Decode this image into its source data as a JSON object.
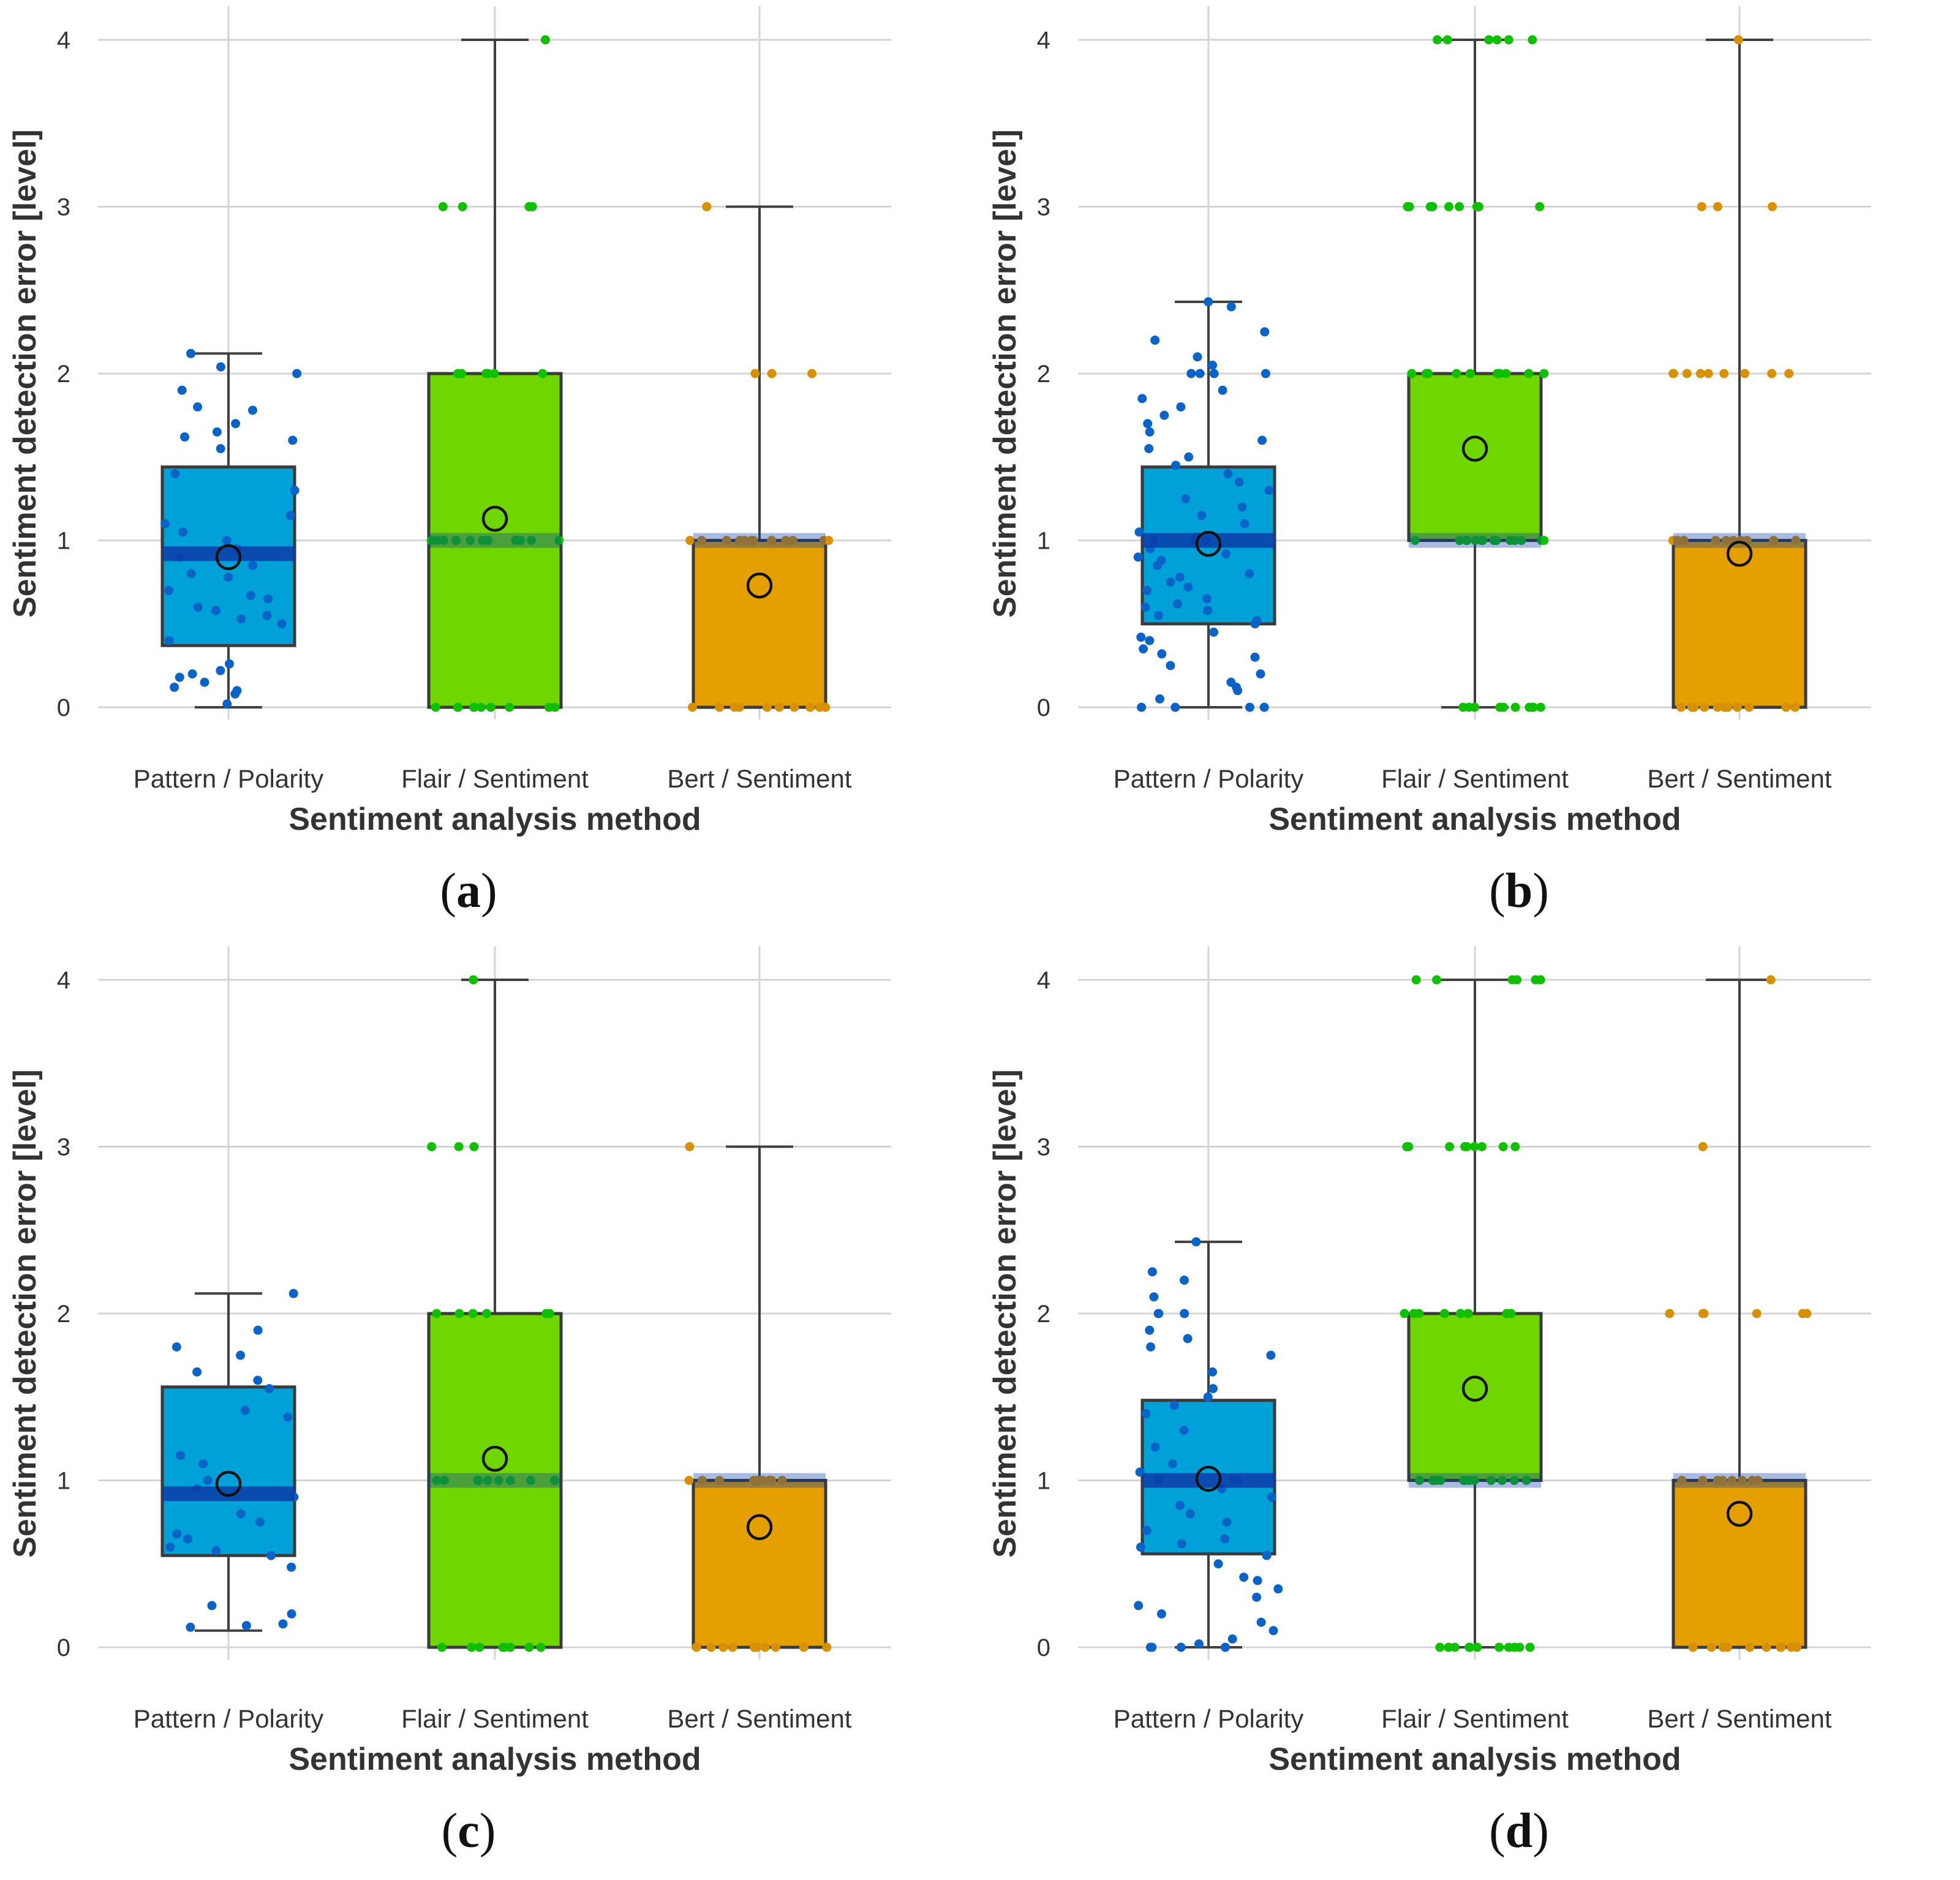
{
  "figure": {
    "panel_labels": [
      "a",
      "b",
      "c",
      "d"
    ]
  },
  "chart_data": [
    {
      "type": "box",
      "panel": "a",
      "xlabel": "Sentiment analysis method",
      "ylabel": "Sentiment detection error [level]",
      "ylim": [
        0,
        4
      ],
      "yticks": [
        0,
        1,
        2,
        3,
        4
      ],
      "categories": [
        "Pattern / Polarity",
        "Flair / Sentiment",
        "Bert / Sentiment"
      ],
      "colors": {
        "box": [
          "#00a0d8",
          "#70d600",
          "#e3a000"
        ],
        "points": [
          "#0a64c8",
          "#10c000",
          "#d89000"
        ],
        "median": "#0a3ca8"
      },
      "boxes": [
        {
          "q1": 0.37,
          "median": 0.92,
          "q3": 1.44,
          "whisker_low": 0,
          "whisker_high": 2.12,
          "mean": 0.9
        },
        {
          "q1": 0,
          "median": 1,
          "q3": 2,
          "whisker_low": 0,
          "whisker_high": 4,
          "mean": 1.13
        },
        {
          "q1": 0,
          "median": 1,
          "q3": 1,
          "whisker_low": 0,
          "whisker_high": 3,
          "mean": 0.73
        }
      ],
      "points": [
        [
          0.02,
          0.1,
          0.12,
          0.2,
          0.22,
          0.26,
          0.4,
          0.5,
          0.53,
          0.58,
          0.6,
          0.65,
          0.67,
          0.7,
          0.78,
          0.8,
          0.85,
          0.9,
          0.95,
          1.0,
          1.05,
          1.1,
          1.15,
          1.3,
          1.4,
          1.55,
          1.6,
          1.62,
          1.65,
          1.7,
          1.78,
          1.8,
          1.9,
          2.0,
          2.04,
          2.12,
          0.08,
          0.15,
          0.18,
          0.55
        ],
        [
          0,
          0,
          0,
          0,
          0,
          0,
          0,
          0,
          0,
          0,
          1,
          1,
          1,
          1,
          1,
          1,
          1,
          1,
          1,
          1,
          1,
          1,
          2,
          2,
          2,
          2,
          2,
          2,
          2,
          2,
          3,
          3,
          3,
          3,
          4
        ],
        [
          0,
          0,
          0,
          0,
          0,
          0,
          0,
          0,
          0,
          0,
          1,
          1,
          1,
          1,
          1,
          1,
          1,
          1,
          1,
          1,
          1,
          1,
          2,
          2,
          2,
          3
        ]
      ]
    },
    {
      "type": "box",
      "panel": "b",
      "xlabel": "Sentiment analysis method",
      "ylabel": "Sentiment detection error [level]",
      "ylim": [
        0,
        4
      ],
      "yticks": [
        0,
        1,
        2,
        3,
        4
      ],
      "categories": [
        "Pattern / Polarity",
        "Flair / Sentiment",
        "Bert / Sentiment"
      ],
      "colors": {
        "box": [
          "#00a0d8",
          "#70d600",
          "#e3a000"
        ],
        "points": [
          "#0a64c8",
          "#10c000",
          "#d89000"
        ],
        "median": "#0a3ca8"
      },
      "boxes": [
        {
          "q1": 0.5,
          "median": 1,
          "q3": 1.44,
          "whisker_low": 0,
          "whisker_high": 2.43,
          "mean": 0.98
        },
        {
          "q1": 1,
          "median": 1,
          "q3": 2,
          "whisker_low": 0,
          "whisker_high": 4,
          "mean": 1.55
        },
        {
          "q1": 0,
          "median": 1,
          "q3": 1,
          "whisker_low": 0,
          "whisker_high": 4,
          "mean": 0.92
        }
      ],
      "points": [
        [
          0,
          0,
          0,
          0,
          0.05,
          0.1,
          0.12,
          0.15,
          0.2,
          0.25,
          0.3,
          0.32,
          0.35,
          0.4,
          0.42,
          0.45,
          0.5,
          0.52,
          0.55,
          0.58,
          0.6,
          0.62,
          0.65,
          0.7,
          0.72,
          0.75,
          0.78,
          0.8,
          0.85,
          0.88,
          0.9,
          0.92,
          0.95,
          1.0,
          1.0,
          1.0,
          1.02,
          1.05,
          1.1,
          1.15,
          1.2,
          1.25,
          1.3,
          1.35,
          1.4,
          1.45,
          1.5,
          1.55,
          1.6,
          1.65,
          1.7,
          1.75,
          1.8,
          1.85,
          1.9,
          2.0,
          2.0,
          2.0,
          2.0,
          2.05,
          2.1,
          2.2,
          2.25,
          2.4,
          2.43
        ],
        [
          0,
          0,
          0,
          0,
          0,
          0,
          0,
          0,
          0,
          0,
          1,
          1,
          1,
          1,
          1,
          1,
          1,
          1,
          1,
          1,
          1,
          1,
          1,
          1,
          2,
          2,
          2,
          2,
          2,
          2,
          2,
          2,
          2,
          2,
          3,
          3,
          3,
          3,
          3,
          3,
          3,
          3,
          3,
          4,
          4,
          4,
          4,
          4,
          4
        ],
        [
          0,
          0,
          0,
          0,
          0,
          0,
          0,
          0,
          0,
          0,
          0,
          0,
          1,
          1,
          1,
          1,
          1,
          1,
          1,
          1,
          1,
          1,
          2,
          2,
          2,
          2,
          2,
          2,
          2,
          2,
          2,
          3,
          3,
          3,
          4
        ]
      ]
    },
    {
      "type": "box",
      "panel": "c",
      "xlabel": "Sentiment analysis method",
      "ylabel": "Sentiment detection error [level]",
      "ylim": [
        0,
        4
      ],
      "yticks": [
        0,
        1,
        2,
        3,
        4
      ],
      "categories": [
        "Pattern / Polarity",
        "Flair / Sentiment",
        "Bert / Sentiment"
      ],
      "colors": {
        "box": [
          "#00a0d8",
          "#70d600",
          "#e3a000"
        ],
        "points": [
          "#0a64c8",
          "#10c000",
          "#d89000"
        ],
        "median": "#0a3ca8"
      },
      "boxes": [
        {
          "q1": 0.55,
          "median": 0.92,
          "q3": 1.56,
          "whisker_low": 0.1,
          "whisker_high": 2.12,
          "mean": 0.98
        },
        {
          "q1": 0,
          "median": 1,
          "q3": 2,
          "whisker_low": 0,
          "whisker_high": 4,
          "mean": 1.13
        },
        {
          "q1": 0,
          "median": 1,
          "q3": 1,
          "whisker_low": 0,
          "whisker_high": 3,
          "mean": 0.72
        }
      ],
      "points": [
        [
          0.12,
          0.13,
          0.14,
          0.2,
          0.25,
          0.48,
          0.55,
          0.58,
          0.6,
          0.65,
          0.68,
          0.75,
          0.8,
          0.9,
          0.95,
          1.0,
          1.1,
          1.15,
          1.38,
          1.42,
          1.55,
          1.6,
          1.65,
          1.75,
          1.8,
          1.9,
          2.12
        ],
        [
          0,
          0,
          0,
          0,
          0,
          0,
          0,
          0,
          0,
          1,
          1,
          1,
          1,
          1,
          1,
          1,
          1,
          1,
          1,
          1,
          2,
          2,
          2,
          2,
          2,
          2,
          3,
          3,
          3,
          4
        ],
        [
          0,
          0,
          0,
          0,
          0,
          0,
          0,
          0,
          0,
          0,
          1,
          1,
          1,
          1,
          1,
          1,
          1,
          1,
          1,
          1,
          3
        ]
      ]
    },
    {
      "type": "box",
      "panel": "d",
      "xlabel": "Sentiment analysis method",
      "ylabel": "Sentiment detection error [level]",
      "ylim": [
        0,
        4
      ],
      "yticks": [
        0,
        1,
        2,
        3,
        4
      ],
      "categories": [
        "Pattern / Polarity",
        "Flair / Sentiment",
        "Bert / Sentiment"
      ],
      "colors": {
        "box": [
          "#00a0d8",
          "#70d600",
          "#e3a000"
        ],
        "points": [
          "#0a64c8",
          "#10c000",
          "#d89000"
        ],
        "median": "#0a3ca8"
      },
      "boxes": [
        {
          "q1": 0.56,
          "median": 1,
          "q3": 1.48,
          "whisker_low": 0,
          "whisker_high": 2.43,
          "mean": 1.01
        },
        {
          "q1": 1,
          "median": 1,
          "q3": 2,
          "whisker_low": 0,
          "whisker_high": 4,
          "mean": 1.55
        },
        {
          "q1": 0,
          "median": 1,
          "q3": 1,
          "whisker_low": 0,
          "whisker_high": 4,
          "mean": 0.8
        }
      ],
      "points": [
        [
          0,
          0,
          0,
          0,
          0.02,
          0.05,
          0.1,
          0.15,
          0.2,
          0.25,
          0.3,
          0.35,
          0.4,
          0.42,
          0.5,
          0.55,
          0.6,
          0.62,
          0.65,
          0.7,
          0.75,
          0.8,
          0.85,
          0.9,
          0.95,
          1.0,
          1.0,
          1.0,
          1.05,
          1.1,
          1.2,
          1.3,
          1.4,
          1.45,
          1.5,
          1.55,
          1.65,
          1.75,
          1.8,
          1.85,
          1.9,
          2.0,
          2.0,
          2.0,
          2.1,
          2.2,
          2.25,
          2.43
        ],
        [
          0,
          0,
          0,
          0,
          0,
          0,
          0,
          0,
          0,
          0,
          0,
          1,
          1,
          1,
          1,
          1,
          1,
          1,
          1,
          1,
          1,
          1,
          1,
          2,
          2,
          2,
          2,
          2,
          2,
          2,
          2,
          2,
          2,
          3,
          3,
          3,
          3,
          3,
          3,
          3,
          3,
          3,
          4,
          4,
          4,
          4,
          4,
          4
        ],
        [
          0,
          0,
          0,
          0,
          0,
          0,
          0,
          0,
          0,
          0,
          0,
          1,
          1,
          1,
          1,
          1,
          1,
          1,
          1,
          1,
          2,
          2,
          2,
          2,
          2,
          2,
          3,
          4
        ]
      ]
    }
  ]
}
